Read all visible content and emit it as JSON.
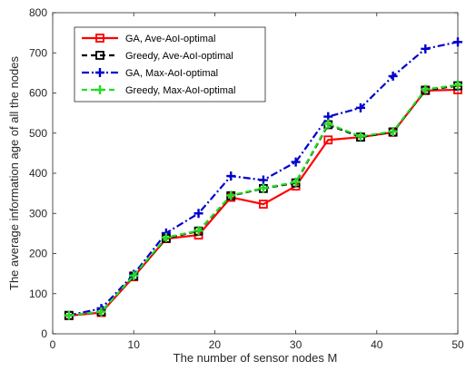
{
  "chart_data": {
    "type": "line",
    "xlabel": "The number of sensor nodes M",
    "ylabel": "The average information age of all the nodes",
    "xlim": [
      0,
      50
    ],
    "ylim": [
      0,
      800
    ],
    "xticks": [
      0,
      10,
      20,
      30,
      40,
      50
    ],
    "yticks": [
      0,
      100,
      200,
      300,
      400,
      500,
      600,
      700,
      800
    ],
    "grid": false,
    "legend_position": "top-left",
    "x": [
      2,
      6,
      10,
      14,
      18,
      22,
      26,
      30,
      34,
      38,
      42,
      46,
      50
    ],
    "series": [
      {
        "name": "GA, Ave-AoI-optimal",
        "color": "#ff0000",
        "line_style": "solid",
        "marker": "square",
        "values": [
          45,
          53,
          142,
          237,
          246,
          340,
          323,
          368,
          483,
          490,
          502,
          606,
          608
        ]
      },
      {
        "name": "Greedy, Ave-AoI-optimal",
        "color": "#000000",
        "line_style": "dashed",
        "marker": "square",
        "values": [
          46,
          55,
          144,
          238,
          256,
          344,
          362,
          376,
          521,
          490,
          503,
          607,
          618
        ]
      },
      {
        "name": "GA, Max-AoI-optimal",
        "color": "#0000cc",
        "line_style": "dashdot",
        "marker": "plus",
        "values": [
          46,
          63,
          148,
          251,
          300,
          393,
          383,
          428,
          541,
          563,
          642,
          710,
          727
        ]
      },
      {
        "name": "Greedy, Max-AoI-optimal",
        "color": "#22dd22",
        "line_style": "dashed",
        "marker": "plus",
        "values": [
          46,
          55,
          145,
          240,
          257,
          345,
          363,
          378,
          523,
          492,
          504,
          609,
          620
        ]
      }
    ]
  }
}
